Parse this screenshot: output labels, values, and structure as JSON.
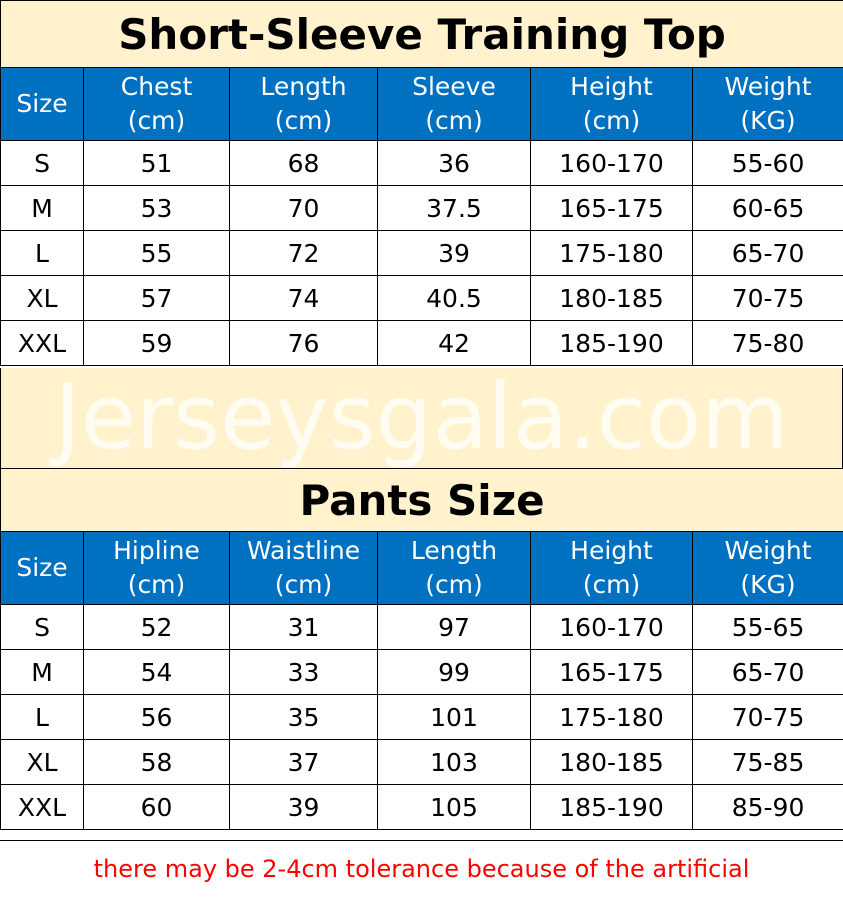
{
  "top": {
    "title": "Short-Sleeve Training Top",
    "headers": [
      [
        "Size",
        ""
      ],
      [
        "Chest",
        "(cm)"
      ],
      [
        "Length",
        "(cm)"
      ],
      [
        "Sleeve",
        "(cm)"
      ],
      [
        "Height",
        "(cm)"
      ],
      [
        "Weight",
        "(KG)"
      ]
    ],
    "rows": [
      [
        "S",
        "51",
        "68",
        "36",
        "160-170",
        "55-60"
      ],
      [
        "M",
        "53",
        "70",
        "37.5",
        "165-175",
        "60-65"
      ],
      [
        "L",
        "55",
        "72",
        "39",
        "175-180",
        "65-70"
      ],
      [
        "XL",
        "57",
        "74",
        "40.5",
        "180-185",
        "70-75"
      ],
      [
        "XXL",
        "59",
        "76",
        "42",
        "185-190",
        "75-80"
      ]
    ]
  },
  "pants": {
    "title": "Pants Size",
    "headers": [
      [
        "Size",
        ""
      ],
      [
        "Hipline",
        "(cm)"
      ],
      [
        "Waistline",
        "(cm)"
      ],
      [
        "Length",
        "(cm)"
      ],
      [
        "Height",
        "(cm)"
      ],
      [
        "Weight",
        "(KG)"
      ]
    ],
    "rows": [
      [
        "S",
        "52",
        "31",
        "97",
        "160-170",
        "55-65"
      ],
      [
        "M",
        "54",
        "33",
        "99",
        "165-175",
        "65-70"
      ],
      [
        "L",
        "56",
        "35",
        "101",
        "175-180",
        "70-75"
      ],
      [
        "XL",
        "58",
        "37",
        "103",
        "180-185",
        "75-85"
      ],
      [
        "XXL",
        "60",
        "39",
        "105",
        "185-190",
        "85-90"
      ]
    ]
  },
  "watermark": "Jerseysgala.com",
  "footer": "there may be 2-4cm tolerance because of the artificial",
  "colors": {
    "header_blue": "#0070c0",
    "title_bg": "#fff2cc",
    "footer_text": "#ff0000"
  }
}
